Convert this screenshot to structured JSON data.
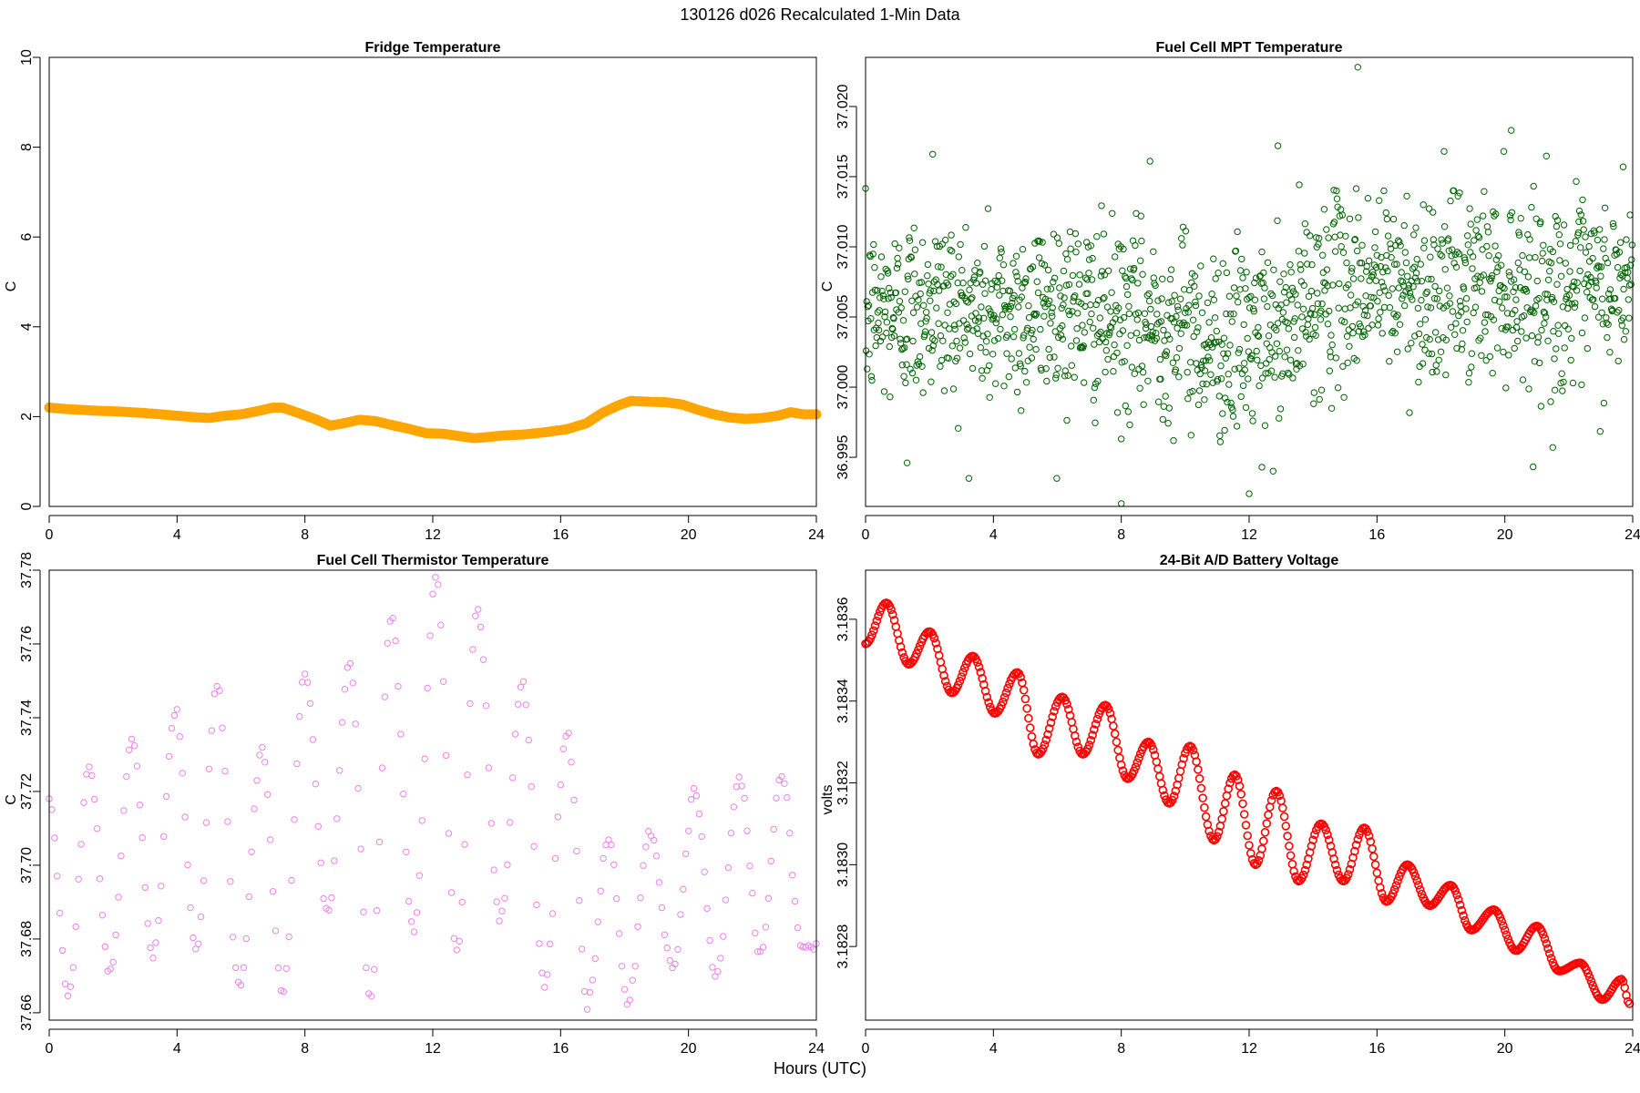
{
  "page": {
    "title": "130126   d026   Recalculated 1-Min Data",
    "xlabel": "Hours (UTC)"
  },
  "chart_data": [
    {
      "type": "line",
      "title": "Fridge Temperature",
      "xlabel": "Hours (UTC)",
      "ylabel": "C",
      "color": "#FFA500",
      "marker": "dense-circles",
      "xlim": [
        0,
        24
      ],
      "ylim": [
        0,
        10
      ],
      "xticks": [
        0,
        4,
        8,
        12,
        16,
        20,
        24
      ],
      "yticks": [
        0,
        2,
        4,
        6,
        8,
        10
      ],
      "ytick_labels": [
        "0",
        "2",
        "4",
        "6",
        "8",
        "10"
      ],
      "x": [
        0,
        0.5,
        1,
        1.5,
        2,
        2.5,
        3,
        3.5,
        4,
        4.5,
        5,
        5.5,
        6,
        6.5,
        7,
        7.3,
        7.8,
        8.3,
        8.8,
        9.2,
        9.7,
        10.2,
        10.8,
        11.3,
        11.8,
        12.3,
        12.8,
        13.3,
        13.8,
        14.2,
        14.8,
        15.5,
        16.2,
        16.8,
        17.3,
        17.8,
        18.2,
        18.8,
        19.3,
        19.8,
        20.3,
        20.8,
        21.3,
        21.8,
        22.3,
        22.8,
        23.2,
        23.6,
        24
      ],
      "y": [
        2.2,
        2.17,
        2.15,
        2.13,
        2.12,
        2.1,
        2.08,
        2.05,
        2.02,
        1.99,
        1.97,
        2.02,
        2.05,
        2.12,
        2.2,
        2.2,
        2.08,
        1.95,
        1.8,
        1.85,
        1.93,
        1.9,
        1.8,
        1.72,
        1.63,
        1.62,
        1.57,
        1.52,
        1.55,
        1.58,
        1.6,
        1.65,
        1.72,
        1.85,
        2.08,
        2.25,
        2.35,
        2.33,
        2.32,
        2.27,
        2.15,
        2.05,
        1.98,
        1.95,
        1.97,
        2.02,
        2.1,
        2.05,
        2.05
      ]
    },
    {
      "type": "scatter",
      "title": "Fuel Cell MPT Temperature",
      "xlabel": "Hours (UTC)",
      "ylabel": "C",
      "color": "#006400",
      "marker": "open-circle",
      "xlim": [
        0,
        24
      ],
      "ylim": [
        36.9915,
        37.0235
      ],
      "xticks": [
        0,
        4,
        8,
        12,
        16,
        20,
        24
      ],
      "yticks": [
        36.995,
        37.0,
        37.005,
        37.01,
        37.015,
        37.02
      ],
      "ytick_labels": [
        "36.995",
        "37.000",
        "37.005",
        "37.010",
        "37.015",
        "37.020"
      ],
      "model": "noisy scatter, ~1440 one-minute points; mean ~37.005 for 0-14 h rising to ~37.007-37.008 after 14 h, noise sd ~0.0035",
      "trend_x": [
        0,
        2,
        4,
        6,
        8,
        10,
        11,
        12,
        13,
        14,
        16,
        18,
        20,
        22,
        24
      ],
      "trend_y": [
        37.005,
        37.006,
        37.005,
        37.006,
        37.0045,
        37.0045,
        37.003,
        37.0035,
        37.0035,
        37.0065,
        37.0075,
        37.007,
        37.0075,
        37.0065,
        37.007
      ],
      "outliers": [
        {
          "x": 15.4,
          "y": 37.0228
        },
        {
          "x": 20.2,
          "y": 37.0183
        },
        {
          "x": 2.1,
          "y": 37.0166
        },
        {
          "x": 8.9,
          "y": 37.0161
        },
        {
          "x": 12.9,
          "y": 37.0172
        },
        {
          "x": 23.7,
          "y": 37.0157
        },
        {
          "x": 1.3,
          "y": 36.9946
        },
        {
          "x": 8.0,
          "y": 36.9917
        },
        {
          "x": 12.0,
          "y": 36.9924
        },
        {
          "x": 12.4,
          "y": 36.9943
        },
        {
          "x": 21.5,
          "y": 36.9957
        }
      ]
    },
    {
      "type": "scatter",
      "title": "Fuel Cell Thermistor Temperature",
      "xlabel": "Hours (UTC)",
      "ylabel": "C",
      "color": "#EE82EE",
      "marker": "open-circle",
      "xlim": [
        0,
        24
      ],
      "ylim": [
        37.658,
        37.78
      ],
      "xticks": [
        0,
        4,
        8,
        12,
        16,
        20,
        24
      ],
      "yticks": [
        37.66,
        37.68,
        37.7,
        37.72,
        37.74,
        37.76,
        37.78
      ],
      "ytick_labels": [
        "37.66",
        "37.68",
        "37.70",
        "37.72",
        "37.74",
        "37.76",
        "37.78"
      ],
      "model": "oscillation with ~1.39 h period sampled every 5 min; peaks and troughs listed below",
      "peaks_x": [
        0.0,
        1.25,
        2.6,
        3.95,
        5.25,
        6.65,
        8.0,
        9.4,
        10.7,
        12.1,
        13.4,
        14.8,
        16.2,
        17.5,
        18.8,
        20.2,
        21.6,
        22.9
      ],
      "peaks_y": [
        37.718,
        37.727,
        37.734,
        37.742,
        37.749,
        37.731,
        37.752,
        37.755,
        37.768,
        37.778,
        37.77,
        37.749,
        37.736,
        37.708,
        37.709,
        37.72,
        37.723,
        37.725
      ],
      "troughs_x": [
        0.6,
        1.9,
        3.25,
        4.6,
        5.95,
        7.3,
        8.7,
        10.05,
        11.4,
        12.75,
        14.1,
        15.5,
        16.85,
        18.1,
        19.5,
        20.85,
        22.25,
        23.55
      ],
      "troughs_y": [
        37.665,
        37.671,
        37.675,
        37.677,
        37.666,
        37.665,
        37.687,
        37.664,
        37.682,
        37.676,
        37.685,
        37.668,
        37.663,
        37.663,
        37.672,
        37.67,
        37.676,
        37.678
      ]
    },
    {
      "type": "line",
      "title": "24-Bit A/D Battery Voltage",
      "xlabel": "Hours (UTC)",
      "ylabel": "volts",
      "color": "#FF0000",
      "marker": "dense-circles",
      "xlim": [
        0,
        24
      ],
      "ylim": [
        3.18262,
        3.18372
      ],
      "xticks": [
        0,
        4,
        8,
        12,
        16,
        20,
        24
      ],
      "yticks": [
        3.1828,
        3.183,
        3.1832,
        3.1834,
        3.1836
      ],
      "ytick_labels": [
        "3.1828",
        "3.1830",
        "3.1832",
        "3.1834",
        "3.1836"
      ],
      "model": "linear decline plus sinusoid with ~1.39 h period; local maxima and minima listed below",
      "maxima_x": [
        0.65,
        2.0,
        3.35,
        4.75,
        6.15,
        7.5,
        8.85,
        10.15,
        11.55,
        12.85,
        14.25,
        15.6,
        16.95,
        18.3,
        19.65,
        21.0,
        22.35,
        23.65
      ],
      "maxima_y": [
        3.18364,
        3.18357,
        3.18351,
        3.18347,
        3.18341,
        3.18339,
        3.1833,
        3.18329,
        3.18322,
        3.18318,
        3.1831,
        3.18309,
        3.183,
        3.18295,
        3.18289,
        3.18285,
        3.18276,
        3.18272
      ],
      "minima_x": [
        0.0,
        1.35,
        2.7,
        4.05,
        5.4,
        6.8,
        8.2,
        9.5,
        10.9,
        12.2,
        13.55,
        14.95,
        16.3,
        17.65,
        18.95,
        20.35,
        21.7,
        23.05,
        23.9
      ],
      "minima_y": [
        3.18354,
        3.18349,
        3.18342,
        3.18337,
        3.18327,
        3.18327,
        3.18321,
        3.18315,
        3.18306,
        3.183,
        3.18296,
        3.18296,
        3.18291,
        3.1829,
        3.18284,
        3.18279,
        3.18274,
        3.18267,
        3.18266
      ]
    }
  ]
}
